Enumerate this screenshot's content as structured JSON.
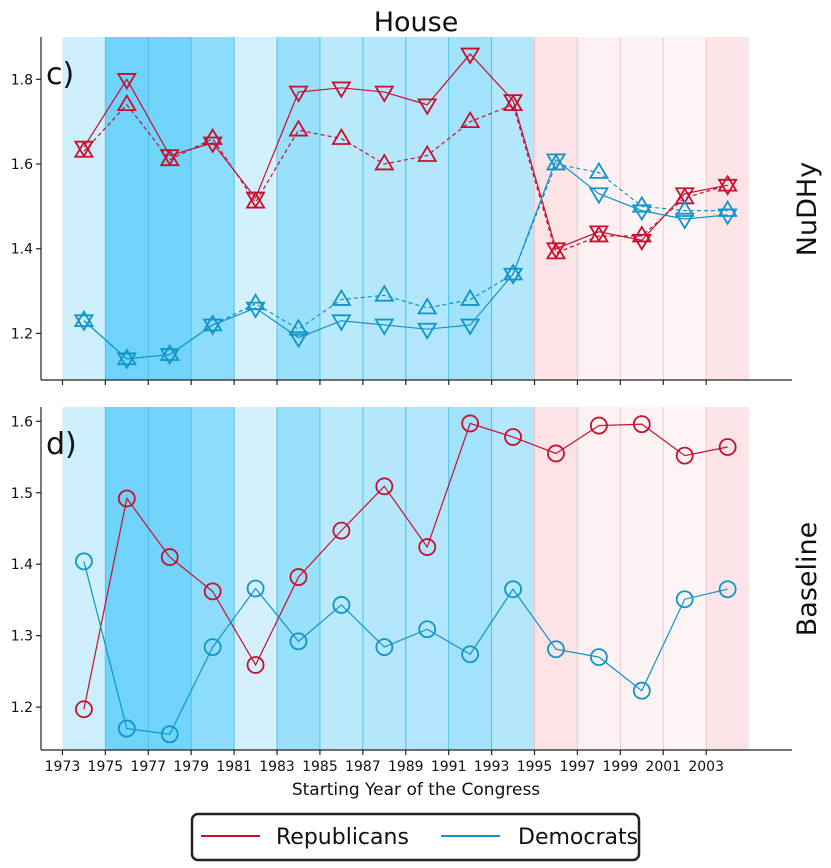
{
  "chart_data": [
    {
      "type": "line",
      "title": "House",
      "panel_label": "c)",
      "ylabel": "NuDHy",
      "xlabel": "",
      "x": [
        1974,
        1976,
        1978,
        1980,
        1982,
        1984,
        1986,
        1988,
        1990,
        1992,
        1994,
        1996,
        1998,
        2000,
        2002,
        2004
      ],
      "ylim": [
        1.09,
        1.9
      ],
      "yticks": [
        1.2,
        1.4,
        1.6,
        1.8
      ],
      "ytick_labels": [
        "1.2",
        "1.4",
        "1.6",
        "1.8"
      ],
      "series": [
        {
          "name": "Republicans (down)",
          "party": "Republicans",
          "marker": "triangle-down",
          "linestyle": "solid",
          "values": [
            1.64,
            1.8,
            1.62,
            1.65,
            1.52,
            1.77,
            1.78,
            1.77,
            1.74,
            1.86,
            1.75,
            1.4,
            1.44,
            1.42,
            1.53,
            1.55
          ]
        },
        {
          "name": "Republicans (up)",
          "party": "Republicans",
          "marker": "triangle-up",
          "linestyle": "dashed",
          "values": [
            1.63,
            1.74,
            1.61,
            1.66,
            1.51,
            1.68,
            1.66,
            1.6,
            1.62,
            1.7,
            1.74,
            1.39,
            1.43,
            1.43,
            1.52,
            1.55
          ]
        },
        {
          "name": "Democrats (down)",
          "party": "Democrats",
          "marker": "triangle-down",
          "linestyle": "solid",
          "values": [
            1.23,
            1.14,
            1.15,
            1.22,
            1.26,
            1.19,
            1.23,
            1.22,
            1.21,
            1.22,
            1.34,
            1.61,
            1.53,
            1.49,
            1.47,
            1.48
          ]
        },
        {
          "name": "Democrats (up)",
          "party": "Democrats",
          "marker": "triangle-up",
          "linestyle": "dashed",
          "values": [
            1.23,
            1.14,
            1.15,
            1.22,
            1.27,
            1.21,
            1.28,
            1.29,
            1.26,
            1.28,
            1.34,
            1.6,
            1.58,
            1.5,
            1.49,
            1.49
          ]
        }
      ]
    },
    {
      "type": "line",
      "title": "",
      "panel_label": "d)",
      "ylabel": "Baseline",
      "xlabel": "Starting Year of the Congress",
      "x": [
        1974,
        1976,
        1978,
        1980,
        1982,
        1984,
        1986,
        1988,
        1990,
        1992,
        1994,
        1996,
        1998,
        2000,
        2002,
        2004
      ],
      "ylim": [
        1.14,
        1.62
      ],
      "yticks": [
        1.2,
        1.3,
        1.4,
        1.5,
        1.6
      ],
      "ytick_labels": [
        "1.2",
        "1.3",
        "1.4",
        "1.5",
        "1.6"
      ],
      "series": [
        {
          "name": "Republicans",
          "party": "Republicans",
          "marker": "circle",
          "linestyle": "solid",
          "values": [
            1.197,
            1.492,
            1.41,
            1.362,
            1.259,
            1.382,
            1.447,
            1.509,
            1.424,
            1.597,
            1.578,
            1.555,
            1.594,
            1.596,
            1.552,
            1.564
          ]
        },
        {
          "name": "Democrats",
          "party": "Democrats",
          "marker": "circle",
          "linestyle": "solid",
          "values": [
            1.404,
            1.17,
            1.162,
            1.284,
            1.366,
            1.292,
            1.343,
            1.284,
            1.309,
            1.274,
            1.365,
            1.281,
            1.27,
            1.223,
            1.351,
            1.365
          ]
        }
      ]
    }
  ],
  "x_axis": {
    "xlim": [
      1972,
      2007
    ],
    "ticks": [
      1973,
      1975,
      1977,
      1979,
      1981,
      1983,
      1985,
      1987,
      1989,
      1991,
      1993,
      1995,
      1997,
      1999,
      2001,
      2003
    ],
    "tick_labels": [
      "1973",
      "1975",
      "1977",
      "1979",
      "1981",
      "1983",
      "1985",
      "1987",
      "1989",
      "1991",
      "1993",
      "1995",
      "1997",
      "1999",
      "2001",
      "2003"
    ]
  },
  "background_bands": [
    {
      "start": 1973,
      "end": 1975,
      "color": "#cdeefb"
    },
    {
      "start": 1975,
      "end": 1977,
      "color": "#6fd3fb"
    },
    {
      "start": 1977,
      "end": 1979,
      "color": "#72d4fb"
    },
    {
      "start": 1979,
      "end": 1981,
      "color": "#8cdcfb"
    },
    {
      "start": 1981,
      "end": 1983,
      "color": "#d3f0fc"
    },
    {
      "start": 1983,
      "end": 1985,
      "color": "#99e0fb"
    },
    {
      "start": 1985,
      "end": 1987,
      "color": "#bbe9fc"
    },
    {
      "start": 1987,
      "end": 1989,
      "color": "#b5e7fc"
    },
    {
      "start": 1989,
      "end": 1991,
      "color": "#b2e6fc"
    },
    {
      "start": 1991,
      "end": 1993,
      "color": "#a3e2fb"
    },
    {
      "start": 1993,
      "end": 1995,
      "color": "#b5e7fc"
    },
    {
      "start": 1995,
      "end": 1997,
      "color": "#fbe3e6"
    },
    {
      "start": 1997,
      "end": 1999,
      "color": "#fdf1f3"
    },
    {
      "start": 1999,
      "end": 2001,
      "color": "#fdf2f4"
    },
    {
      "start": 2001,
      "end": 2003,
      "color": "#fdf4f5"
    },
    {
      "start": 2003,
      "end": 2005,
      "color": "#fbe4e7"
    }
  ],
  "band_line_colors": {
    "democratic": "#4cc3ec",
    "republican": "#f3c7cf"
  },
  "colors": {
    "Republicans": "#c8102e",
    "Democrats": "#0f95c8"
  },
  "legend": {
    "items": [
      {
        "label": "Republicans",
        "party": "Republicans"
      },
      {
        "label": "Democrats",
        "party": "Democrats"
      }
    ],
    "placement": "bottom-center"
  }
}
